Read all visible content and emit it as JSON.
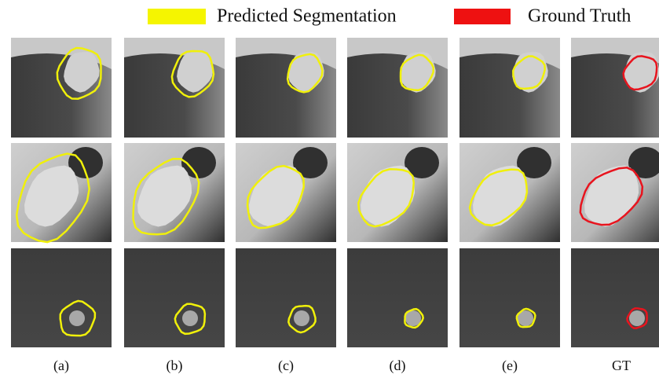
{
  "legend": [
    {
      "label": "Predicted Segmentation"
    },
    {
      "label": "Ground Truth"
    }
  ],
  "columns": [
    "(a)",
    "(b)",
    "(c)",
    "(d)",
    "(e)",
    "GT"
  ]
}
